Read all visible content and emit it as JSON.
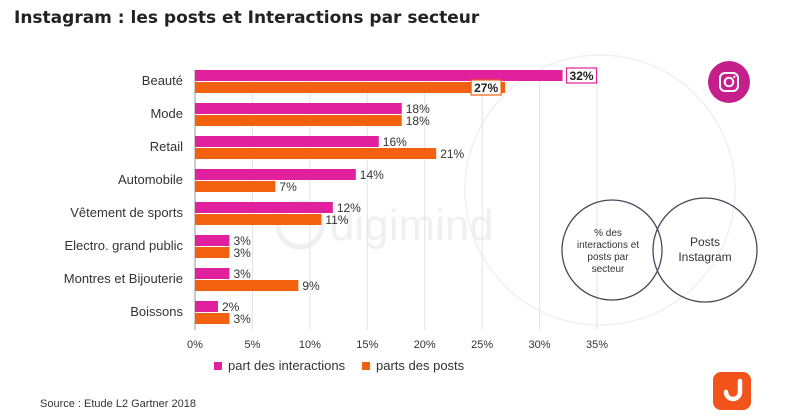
{
  "title": "Instagram : les posts et Interactions par secteur",
  "source": "Source : Etude L2 Gartner 2018",
  "watermark": "digimind",
  "colors": {
    "interactions": "#e0209c",
    "posts": "#f2610f",
    "grid": "#e3e3e3",
    "instagram_badge": "#c51f8c",
    "digimind_badge": "#f2531a"
  },
  "venn": {
    "left_label": "% des interactions et posts par secteur",
    "right_label": "Posts Instagram"
  },
  "chart_data": {
    "type": "bar",
    "orientation": "horizontal",
    "title": "Instagram : les posts et Interactions par secteur",
    "categories": [
      "Beauté",
      "Mode",
      "Retail",
      "Automobile",
      "Vêtement de sports",
      "Electro. grand public",
      "Montres et Bijouterie",
      "Boissons"
    ],
    "series": [
      {
        "name": "part des interactions",
        "values": [
          32,
          18,
          16,
          14,
          12,
          3,
          3,
          2
        ],
        "labels": [
          "32%",
          "18%",
          "16%",
          "14%",
          "12%",
          "3%",
          "3%",
          "2%"
        ]
      },
      {
        "name": "parts des posts",
        "values": [
          27,
          18,
          21,
          7,
          11,
          3,
          9,
          3
        ],
        "labels": [
          "27%",
          "18%",
          "21%",
          "7%",
          "11%",
          "3%",
          "9%",
          "3%"
        ]
      }
    ],
    "xlim": [
      0,
      35
    ],
    "xticks": [
      0,
      5,
      10,
      15,
      20,
      25,
      30,
      35
    ],
    "xtick_labels": [
      "0%",
      "5%",
      "10%",
      "15%",
      "20%",
      "25%",
      "30%",
      "35%"
    ],
    "grid": true,
    "legend_position": "bottom",
    "highlighted_category": "Beauté"
  }
}
